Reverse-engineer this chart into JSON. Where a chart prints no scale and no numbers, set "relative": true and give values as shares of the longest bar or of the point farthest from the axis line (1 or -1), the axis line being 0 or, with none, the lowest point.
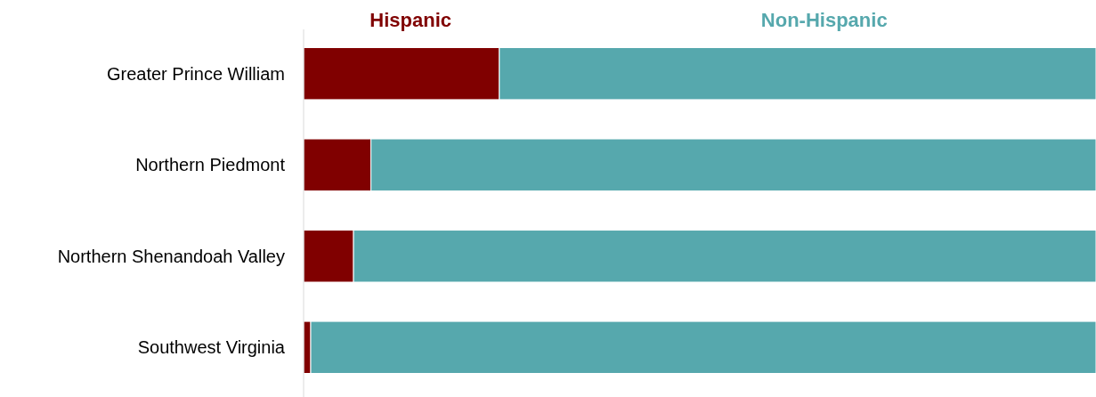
{
  "chart_data": {
    "type": "bar",
    "orientation": "horizontal",
    "stacked": true,
    "relative": true,
    "legend": "top",
    "categories": [
      "Greater Prince William",
      "Northern Piedmont",
      "Northern Shenandoah Valley",
      "Southwest Virginia"
    ],
    "series": [
      {
        "name": "Hispanic",
        "color": "#800000",
        "values": [
          0.247,
          0.085,
          0.063,
          0.009
        ]
      },
      {
        "name": "Non-Hispanic",
        "color": "#56a8ad",
        "values": [
          0.753,
          0.915,
          0.937,
          0.991
        ]
      }
    ]
  }
}
